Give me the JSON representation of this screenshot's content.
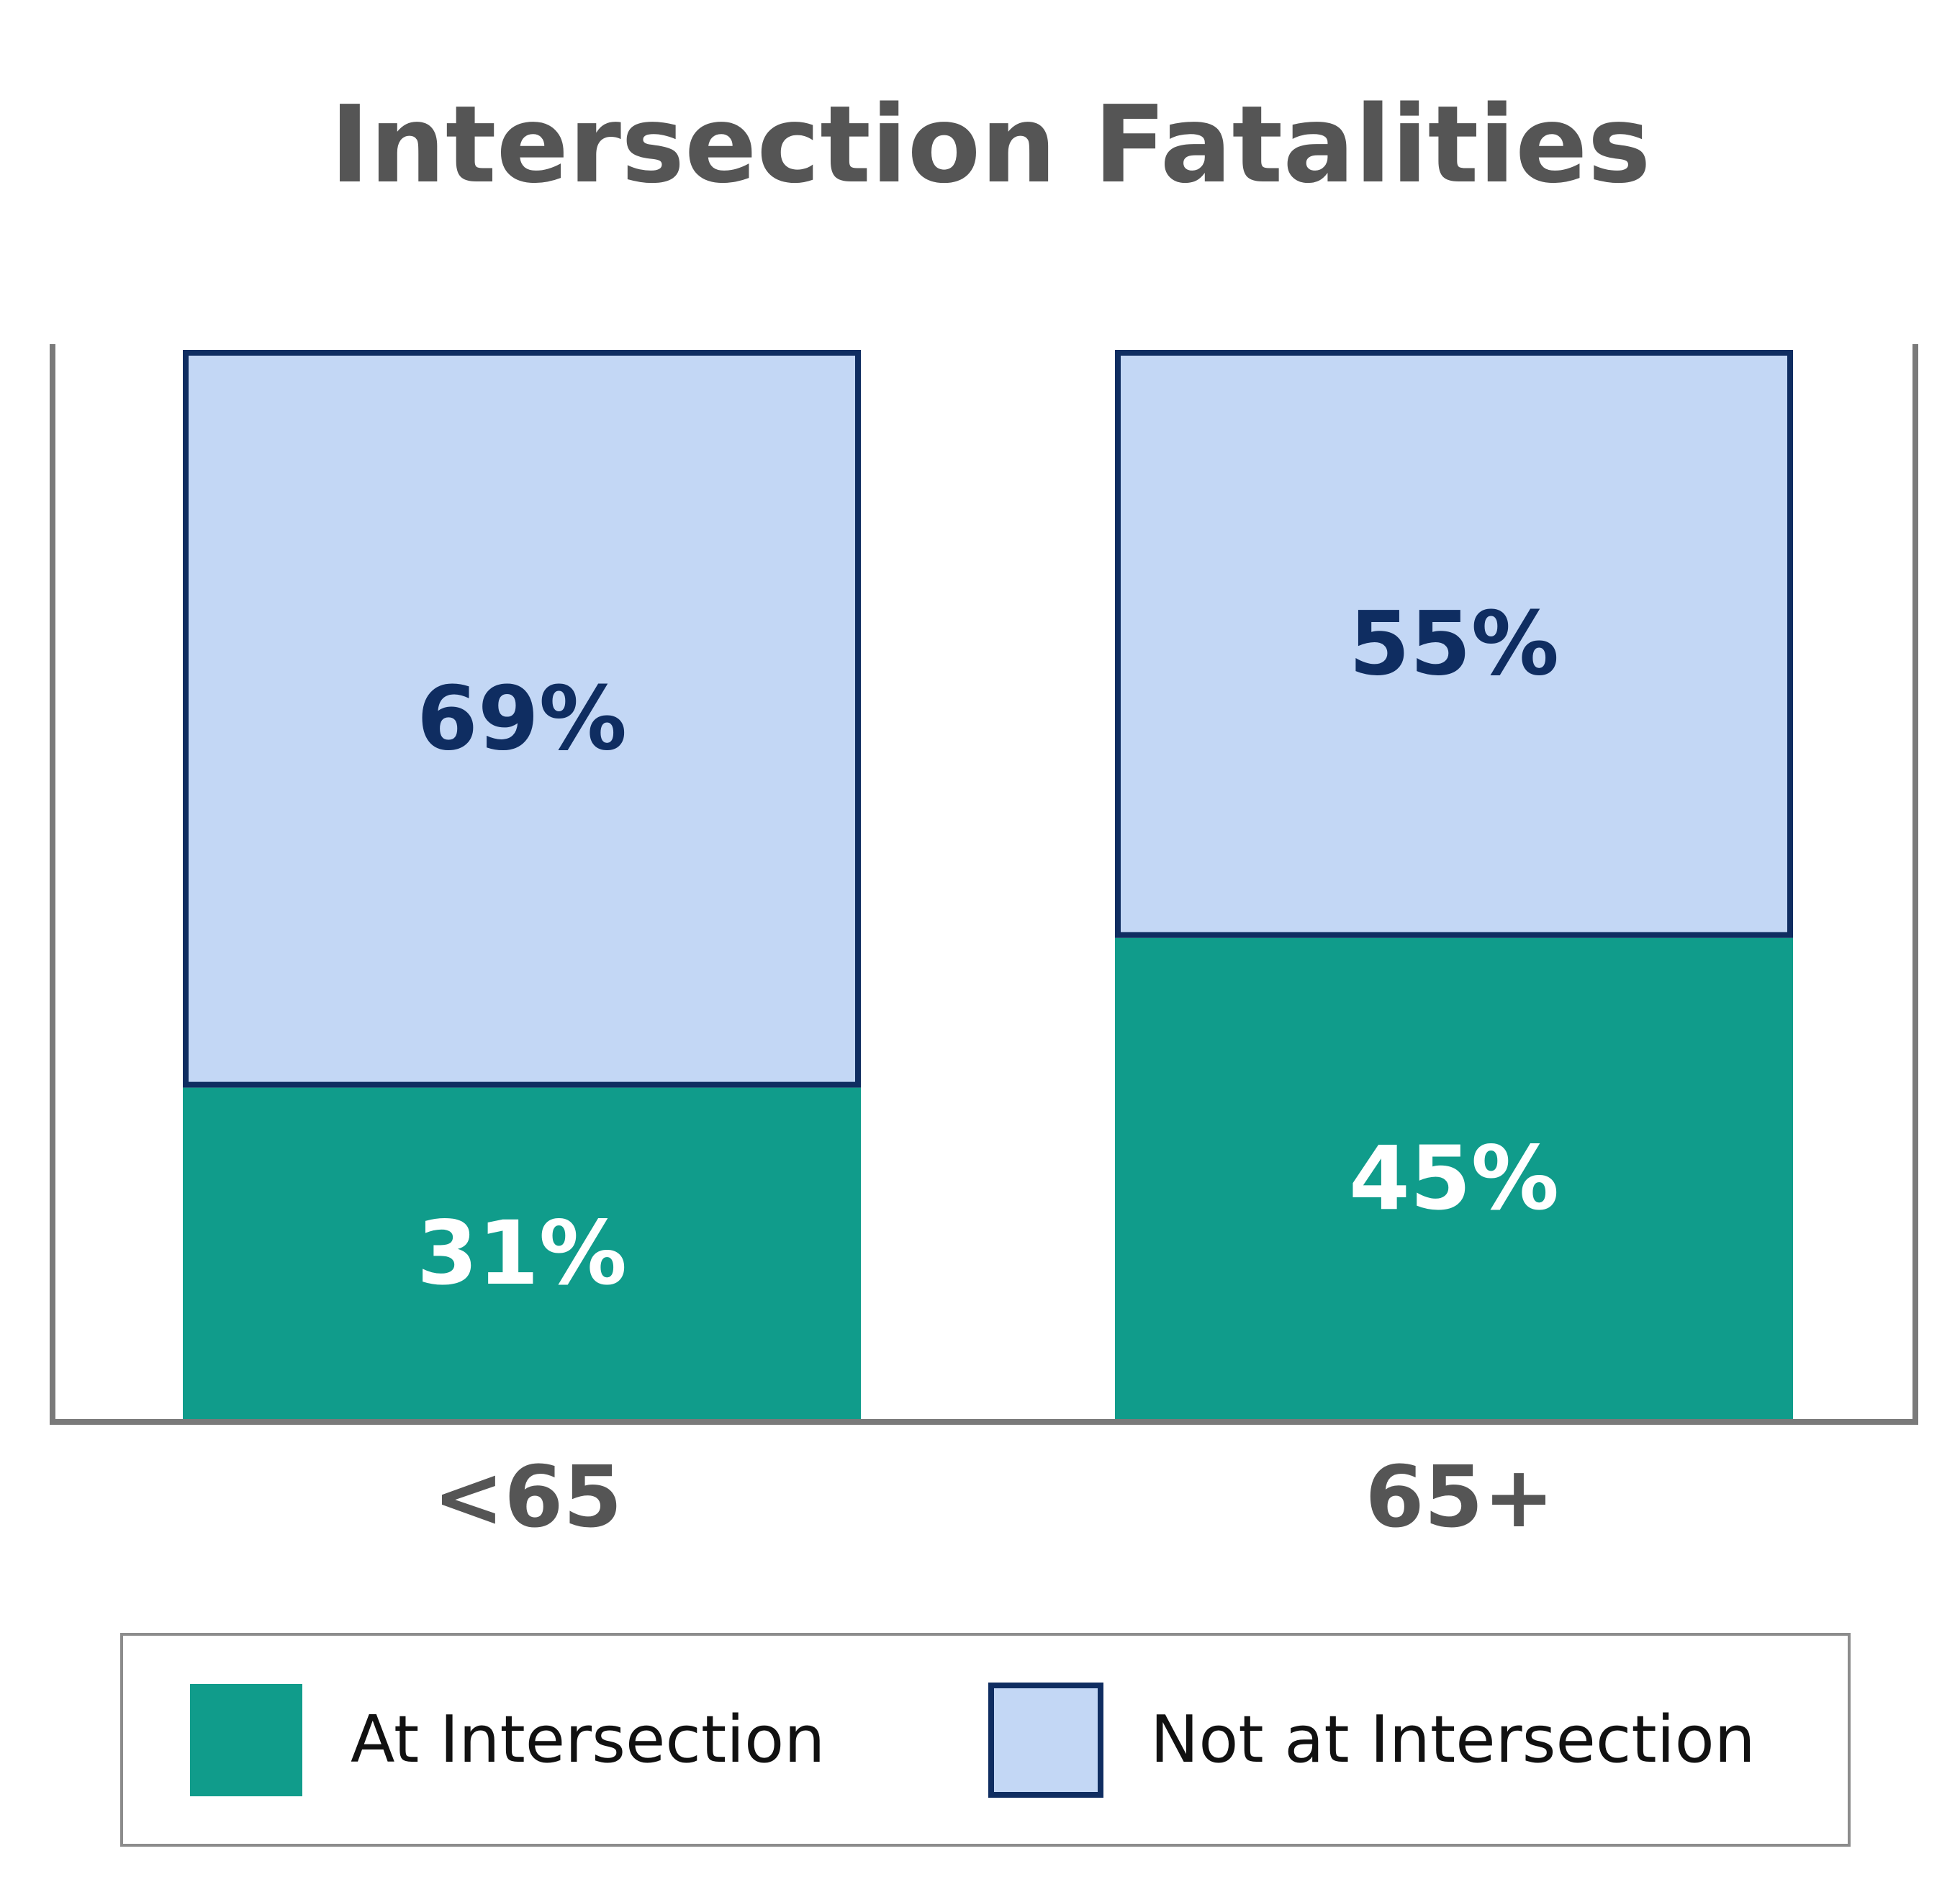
{
  "chart_data": {
    "type": "bar",
    "stacked": true,
    "title": "Intersection Fatalities",
    "categories": [
      "<65",
      "65+"
    ],
    "series": [
      {
        "name": "At Intersection",
        "values": [
          31,
          45
        ],
        "labels": [
          "31%",
          "45%"
        ],
        "color": "#109C8B",
        "label_color": "#FFFFFF"
      },
      {
        "name": "Not at Intersection",
        "values": [
          69,
          55
        ],
        "labels": [
          "69%",
          "55%"
        ],
        "color": "#C3D7F5",
        "border_color": "#0F2D61",
        "label_color": "#0F2D61"
      }
    ],
    "ylim": [
      0,
      100
    ],
    "grid": false,
    "legend": "bottom"
  }
}
